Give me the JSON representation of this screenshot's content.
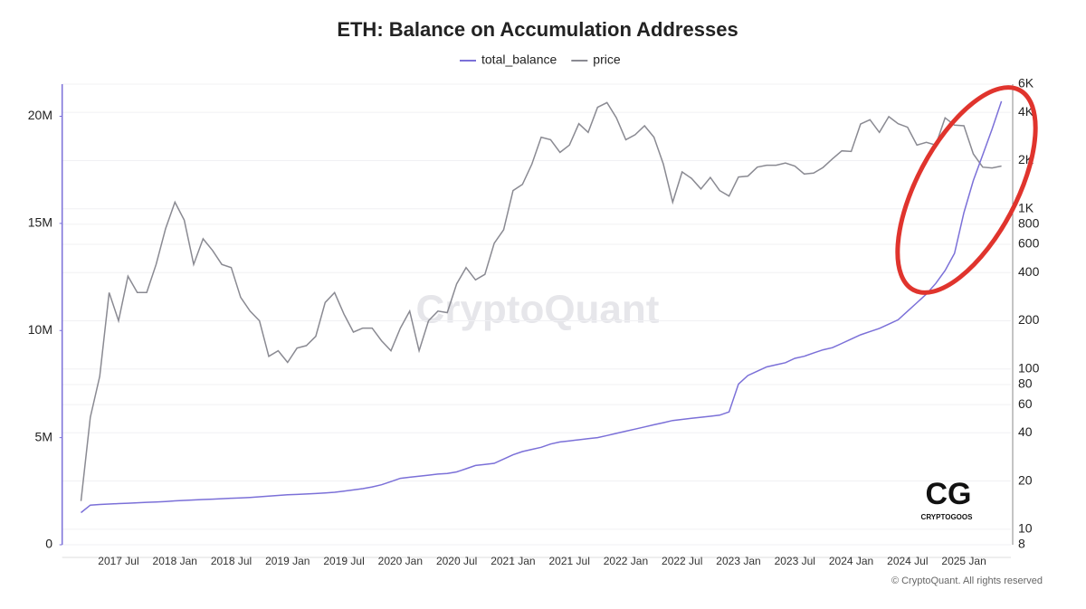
{
  "chart_data": {
    "type": "line",
    "title": "ETH: Balance on Accumulation Addresses",
    "watermark": "CryptoQuant",
    "logo": "CRYPTOGOOS",
    "copyright": "© CryptoQuant. All rights reserved",
    "x": [
      "2017-03",
      "2017-04",
      "2017-05",
      "2017-06",
      "2017-07",
      "2017-08",
      "2017-09",
      "2017-10",
      "2017-11",
      "2017-12",
      "2018-01",
      "2018-02",
      "2018-03",
      "2018-04",
      "2018-05",
      "2018-06",
      "2018-07",
      "2018-08",
      "2018-09",
      "2018-10",
      "2018-11",
      "2018-12",
      "2019-01",
      "2019-02",
      "2019-03",
      "2019-04",
      "2019-05",
      "2019-06",
      "2019-07",
      "2019-08",
      "2019-09",
      "2019-10",
      "2019-11",
      "2019-12",
      "2020-01",
      "2020-02",
      "2020-03",
      "2020-04",
      "2020-05",
      "2020-06",
      "2020-07",
      "2020-08",
      "2020-09",
      "2020-10",
      "2020-11",
      "2020-12",
      "2021-01",
      "2021-02",
      "2021-03",
      "2021-04",
      "2021-05",
      "2021-06",
      "2021-07",
      "2021-08",
      "2021-09",
      "2021-10",
      "2021-11",
      "2021-12",
      "2022-01",
      "2022-02",
      "2022-03",
      "2022-04",
      "2022-05",
      "2022-06",
      "2022-07",
      "2022-08",
      "2022-09",
      "2022-10",
      "2022-11",
      "2022-12",
      "2023-01",
      "2023-02",
      "2023-03",
      "2023-04",
      "2023-05",
      "2023-06",
      "2023-07",
      "2023-08",
      "2023-09",
      "2023-10",
      "2023-11",
      "2023-12",
      "2024-01",
      "2024-02",
      "2024-03",
      "2024-04",
      "2024-05",
      "2024-06",
      "2024-07",
      "2024-08",
      "2024-09",
      "2024-10",
      "2024-11",
      "2024-12",
      "2025-01",
      "2025-02",
      "2025-03",
      "2025-04",
      "2025-05"
    ],
    "series": [
      {
        "name": "total_balance",
        "color": "#7b70d8",
        "axis": "y",
        "values": [
          1500000,
          1850000,
          1880000,
          1900000,
          1920000,
          1940000,
          1960000,
          1980000,
          2000000,
          2020000,
          2050000,
          2070000,
          2090000,
          2110000,
          2130000,
          2150000,
          2170000,
          2190000,
          2210000,
          2240000,
          2270000,
          2300000,
          2330000,
          2350000,
          2370000,
          2390000,
          2420000,
          2450000,
          2500000,
          2560000,
          2620000,
          2700000,
          2800000,
          2950000,
          3100000,
          3150000,
          3200000,
          3250000,
          3300000,
          3330000,
          3400000,
          3550000,
          3700000,
          3750000,
          3800000,
          4000000,
          4200000,
          4350000,
          4450000,
          4550000,
          4700000,
          4800000,
          4850000,
          4900000,
          4950000,
          5000000,
          5100000,
          5200000,
          5300000,
          5400000,
          5500000,
          5600000,
          5700000,
          5800000,
          5850000,
          5900000,
          5950000,
          6000000,
          6050000,
          6200000,
          7500000,
          7900000,
          8100000,
          8300000,
          8400000,
          8500000,
          8700000,
          8800000,
          8950000,
          9100000,
          9200000,
          9400000,
          9600000,
          9800000,
          9950000,
          10100000,
          10300000,
          10500000,
          10900000,
          11300000,
          11700000,
          12200000,
          12800000,
          13600000,
          15500000,
          17000000,
          18200000,
          19400000,
          20700000
        ]
      },
      {
        "name": "price",
        "color": "#8a8a92",
        "axis": "y2",
        "values": [
          15,
          50,
          90,
          300,
          200,
          380,
          300,
          300,
          450,
          750,
          1100,
          850,
          450,
          650,
          550,
          450,
          430,
          280,
          230,
          200,
          120,
          130,
          110,
          135,
          140,
          160,
          260,
          300,
          220,
          170,
          180,
          180,
          150,
          130,
          180,
          230,
          130,
          200,
          230,
          225,
          340,
          430,
          360,
          390,
          610,
          740,
          1300,
          1420,
          1900,
          2800,
          2700,
          2250,
          2500,
          3400,
          3000,
          4300,
          4600,
          3700,
          2700,
          2900,
          3300,
          2800,
          1900,
          1100,
          1700,
          1550,
          1330,
          1570,
          1300,
          1200,
          1580,
          1600,
          1820,
          1870,
          1870,
          1930,
          1850,
          1650,
          1670,
          1810,
          2050,
          2300,
          2280,
          3380,
          3600,
          3000,
          3760,
          3400,
          3230,
          2500,
          2600,
          2500,
          3700,
          3330,
          3300,
          2200,
          1820,
          1800,
          1850
        ]
      }
    ],
    "xlim": [
      "2017-01",
      "2025-06"
    ],
    "xticks": [
      {
        "value": "2017-07",
        "label": "2017 Jul"
      },
      {
        "value": "2018-01",
        "label": "2018 Jan"
      },
      {
        "value": "2018-07",
        "label": "2018 Jul"
      },
      {
        "value": "2019-01",
        "label": "2019 Jan"
      },
      {
        "value": "2019-07",
        "label": "2019 Jul"
      },
      {
        "value": "2020-01",
        "label": "2020 Jan"
      },
      {
        "value": "2020-07",
        "label": "2020 Jul"
      },
      {
        "value": "2021-01",
        "label": "2021 Jan"
      },
      {
        "value": "2021-07",
        "label": "2021 Jul"
      },
      {
        "value": "2022-01",
        "label": "2022 Jan"
      },
      {
        "value": "2022-07",
        "label": "2022 Jul"
      },
      {
        "value": "2023-01",
        "label": "2023 Jan"
      },
      {
        "value": "2023-07",
        "label": "2023 Jul"
      },
      {
        "value": "2024-01",
        "label": "2024 Jan"
      },
      {
        "value": "2024-07",
        "label": "2024 Jul"
      },
      {
        "value": "2025-01",
        "label": "2025 Jan"
      }
    ],
    "ylim": [
      0,
      21500000
    ],
    "yticks": [
      0,
      {
        "value": 5000000,
        "label": "5M"
      },
      {
        "value": 10000000,
        "label": "10M"
      },
      {
        "value": 15000000,
        "label": "15M"
      },
      {
        "value": 20000000,
        "label": "20M"
      }
    ],
    "y2lim": [
      8,
      6000
    ],
    "y2log": true,
    "y2ticks": [
      8,
      10,
      20,
      40,
      60,
      80,
      100,
      200,
      400,
      600,
      800,
      {
        "value": 1000,
        "label": "1K"
      },
      {
        "value": 2000,
        "label": "2K"
      },
      {
        "value": 4000,
        "label": "4K"
      },
      {
        "value": 6000,
        "label": "6K"
      }
    ],
    "grid": true
  }
}
